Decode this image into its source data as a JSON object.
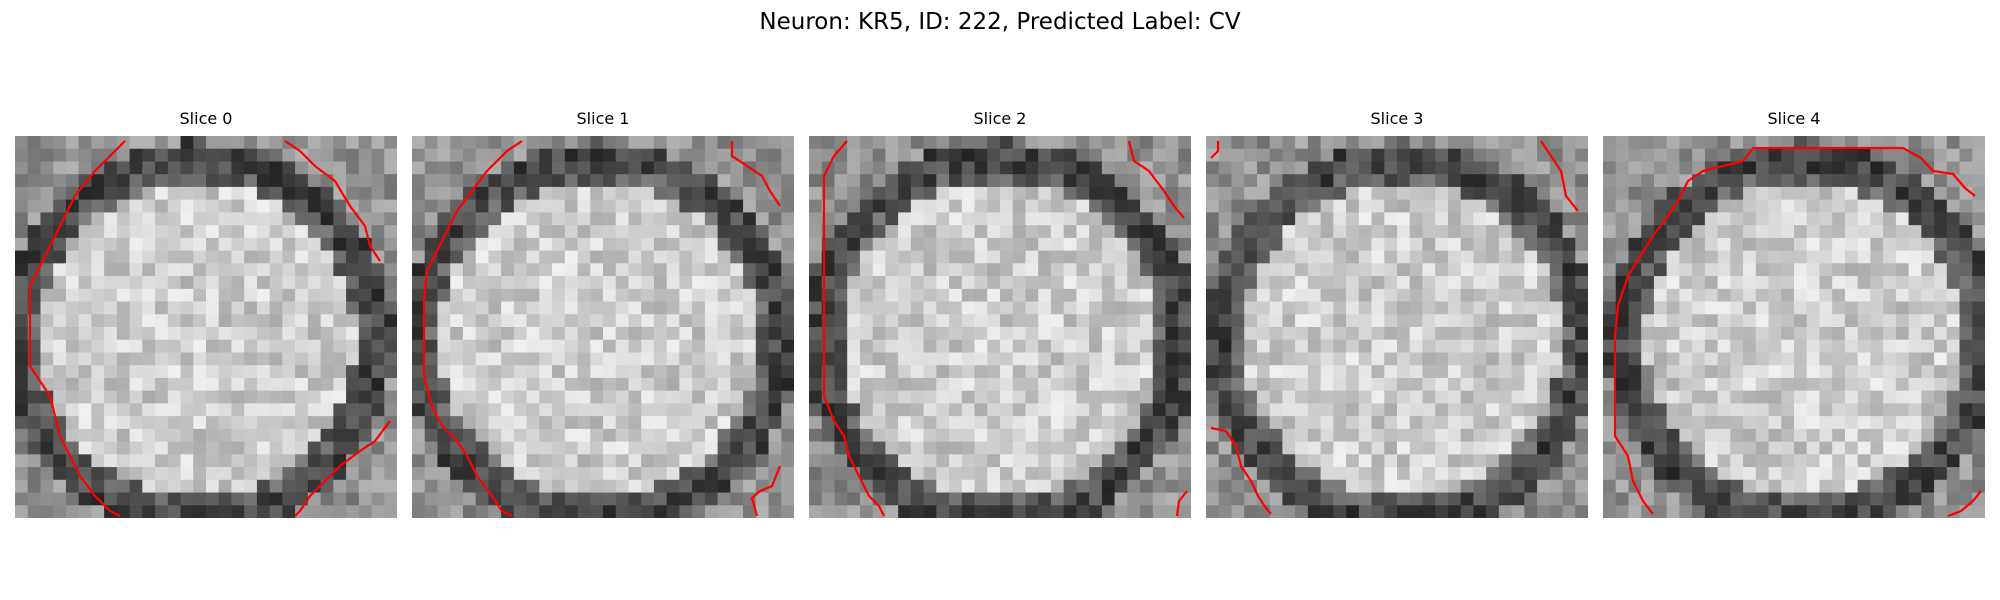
{
  "figure": {
    "title": "Neuron: KR5, ID: 222, Predicted Label: CV"
  },
  "panels": [
    {
      "title": "Slice 0",
      "seed": 11,
      "contour_color": "#ff0000"
    },
    {
      "title": "Slice 1",
      "seed": 23,
      "contour_color": "#ff0000"
    },
    {
      "title": "Slice 2",
      "seed": 37,
      "contour_color": "#ff0000"
    },
    {
      "title": "Slice 3",
      "seed": 41,
      "contour_color": "#ff0000"
    },
    {
      "title": "Slice 4",
      "seed": 59,
      "contour_color": "#ff0000"
    }
  ]
}
